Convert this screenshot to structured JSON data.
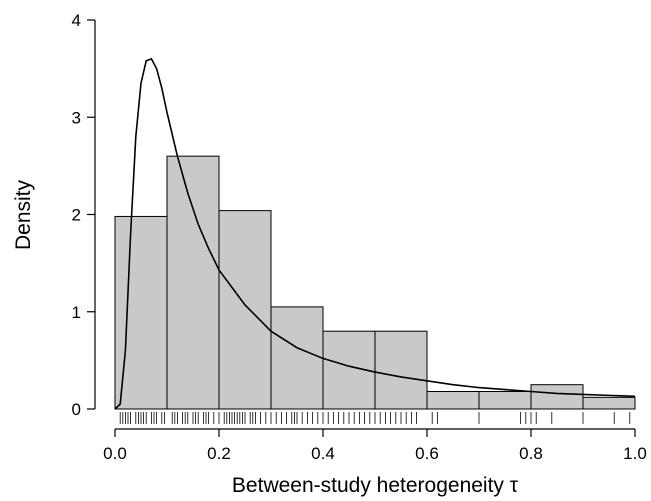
{
  "chart_data": {
    "type": "bar",
    "subtype": "histogram-with-density-curve",
    "xlabel": "Between-study heterogeneity τ",
    "ylabel": "Density",
    "xlim": [
      0,
      1
    ],
    "ylim": [
      0,
      4
    ],
    "x_ticks": [
      "0.0",
      "0.2",
      "0.4",
      "0.6",
      "0.8",
      "1.0"
    ],
    "y_ticks": [
      "0",
      "1",
      "2",
      "3",
      "4"
    ],
    "bins": [
      {
        "start": 0.0,
        "end": 0.1,
        "density": 1.98
      },
      {
        "start": 0.1,
        "end": 0.2,
        "density": 2.6
      },
      {
        "start": 0.2,
        "end": 0.3,
        "density": 2.04
      },
      {
        "start": 0.3,
        "end": 0.4,
        "density": 1.05
      },
      {
        "start": 0.4,
        "end": 0.5,
        "density": 0.8
      },
      {
        "start": 0.5,
        "end": 0.6,
        "density": 0.8
      },
      {
        "start": 0.6,
        "end": 0.7,
        "density": 0.18
      },
      {
        "start": 0.7,
        "end": 0.8,
        "density": 0.18
      },
      {
        "start": 0.8,
        "end": 0.9,
        "density": 0.25
      },
      {
        "start": 0.9,
        "end": 1.0,
        "density": 0.12
      }
    ],
    "density_curve": {
      "x": [
        0.0,
        0.01,
        0.02,
        0.03,
        0.04,
        0.05,
        0.06,
        0.07,
        0.08,
        0.09,
        0.1,
        0.12,
        0.14,
        0.16,
        0.18,
        0.2,
        0.25,
        0.3,
        0.35,
        0.4,
        0.45,
        0.5,
        0.55,
        0.6,
        0.65,
        0.7,
        0.75,
        0.8,
        0.85,
        0.9,
        0.95,
        1.0
      ],
      "y": [
        0.0,
        0.05,
        0.6,
        1.8,
        2.8,
        3.35,
        3.58,
        3.6,
        3.5,
        3.3,
        3.05,
        2.6,
        2.22,
        1.9,
        1.65,
        1.43,
        1.07,
        0.8,
        0.63,
        0.52,
        0.44,
        0.38,
        0.33,
        0.29,
        0.25,
        0.22,
        0.2,
        0.18,
        0.16,
        0.15,
        0.14,
        0.13
      ]
    },
    "rug": [
      0.01,
      0.015,
      0.02,
      0.025,
      0.03,
      0.04,
      0.045,
      0.05,
      0.055,
      0.06,
      0.07,
      0.075,
      0.08,
      0.09,
      0.095,
      0.11,
      0.115,
      0.12,
      0.13,
      0.135,
      0.14,
      0.15,
      0.155,
      0.16,
      0.17,
      0.175,
      0.18,
      0.19,
      0.2,
      0.21,
      0.215,
      0.22,
      0.225,
      0.23,
      0.235,
      0.24,
      0.245,
      0.25,
      0.26,
      0.265,
      0.27,
      0.28,
      0.29,
      0.3,
      0.31,
      0.32,
      0.33,
      0.34,
      0.345,
      0.35,
      0.36,
      0.37,
      0.38,
      0.39,
      0.4,
      0.41,
      0.42,
      0.43,
      0.44,
      0.45,
      0.46,
      0.47,
      0.48,
      0.49,
      0.5,
      0.51,
      0.52,
      0.53,
      0.54,
      0.55,
      0.56,
      0.57,
      0.58,
      0.61,
      0.62,
      0.7,
      0.78,
      0.79,
      0.8,
      0.81,
      0.84,
      0.9,
      0.96,
      0.99
    ],
    "colors": {
      "bar_fill": "#c9c9c9",
      "bar_stroke": "#000000",
      "curve": "#000000"
    }
  }
}
